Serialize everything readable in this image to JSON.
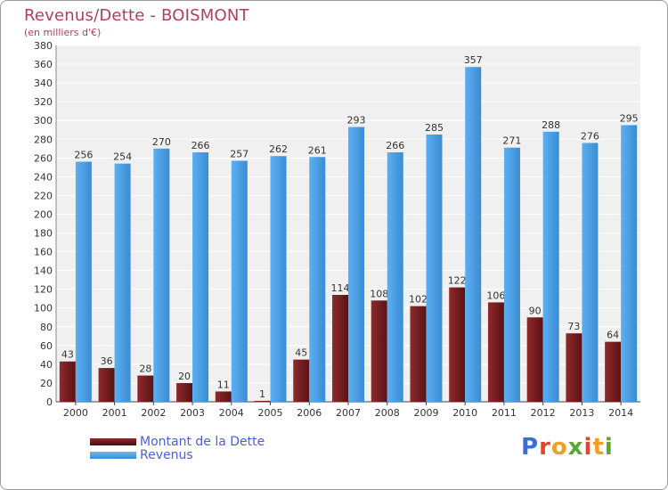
{
  "chart_data": {
    "type": "bar",
    "title": "Revenus/Dette - BOISMONT",
    "subtitle": "(en milliers d'€)",
    "categories": [
      "2000",
      "2001",
      "2002",
      "2003",
      "2004",
      "2005",
      "2006",
      "2007",
      "2008",
      "2009",
      "2010",
      "2011",
      "2012",
      "2013",
      "2014"
    ],
    "series": [
      {
        "name": "Montant de la Dette",
        "color": "#7a1f22",
        "values": [
          43,
          36,
          28,
          20,
          11,
          1,
          45,
          114,
          108,
          102,
          122,
          106,
          90,
          73,
          64
        ]
      },
      {
        "name": "Revenus",
        "color": "#4aa0e6",
        "values": [
          256,
          254,
          270,
          266,
          257,
          262,
          261,
          293,
          266,
          285,
          357,
          271,
          288,
          276,
          295
        ]
      }
    ],
    "ylim": [
      0,
      380
    ],
    "ytick_step": 20,
    "grid": true,
    "legend_position": "bottom-left"
  },
  "logo": {
    "text": "Proxiti"
  }
}
